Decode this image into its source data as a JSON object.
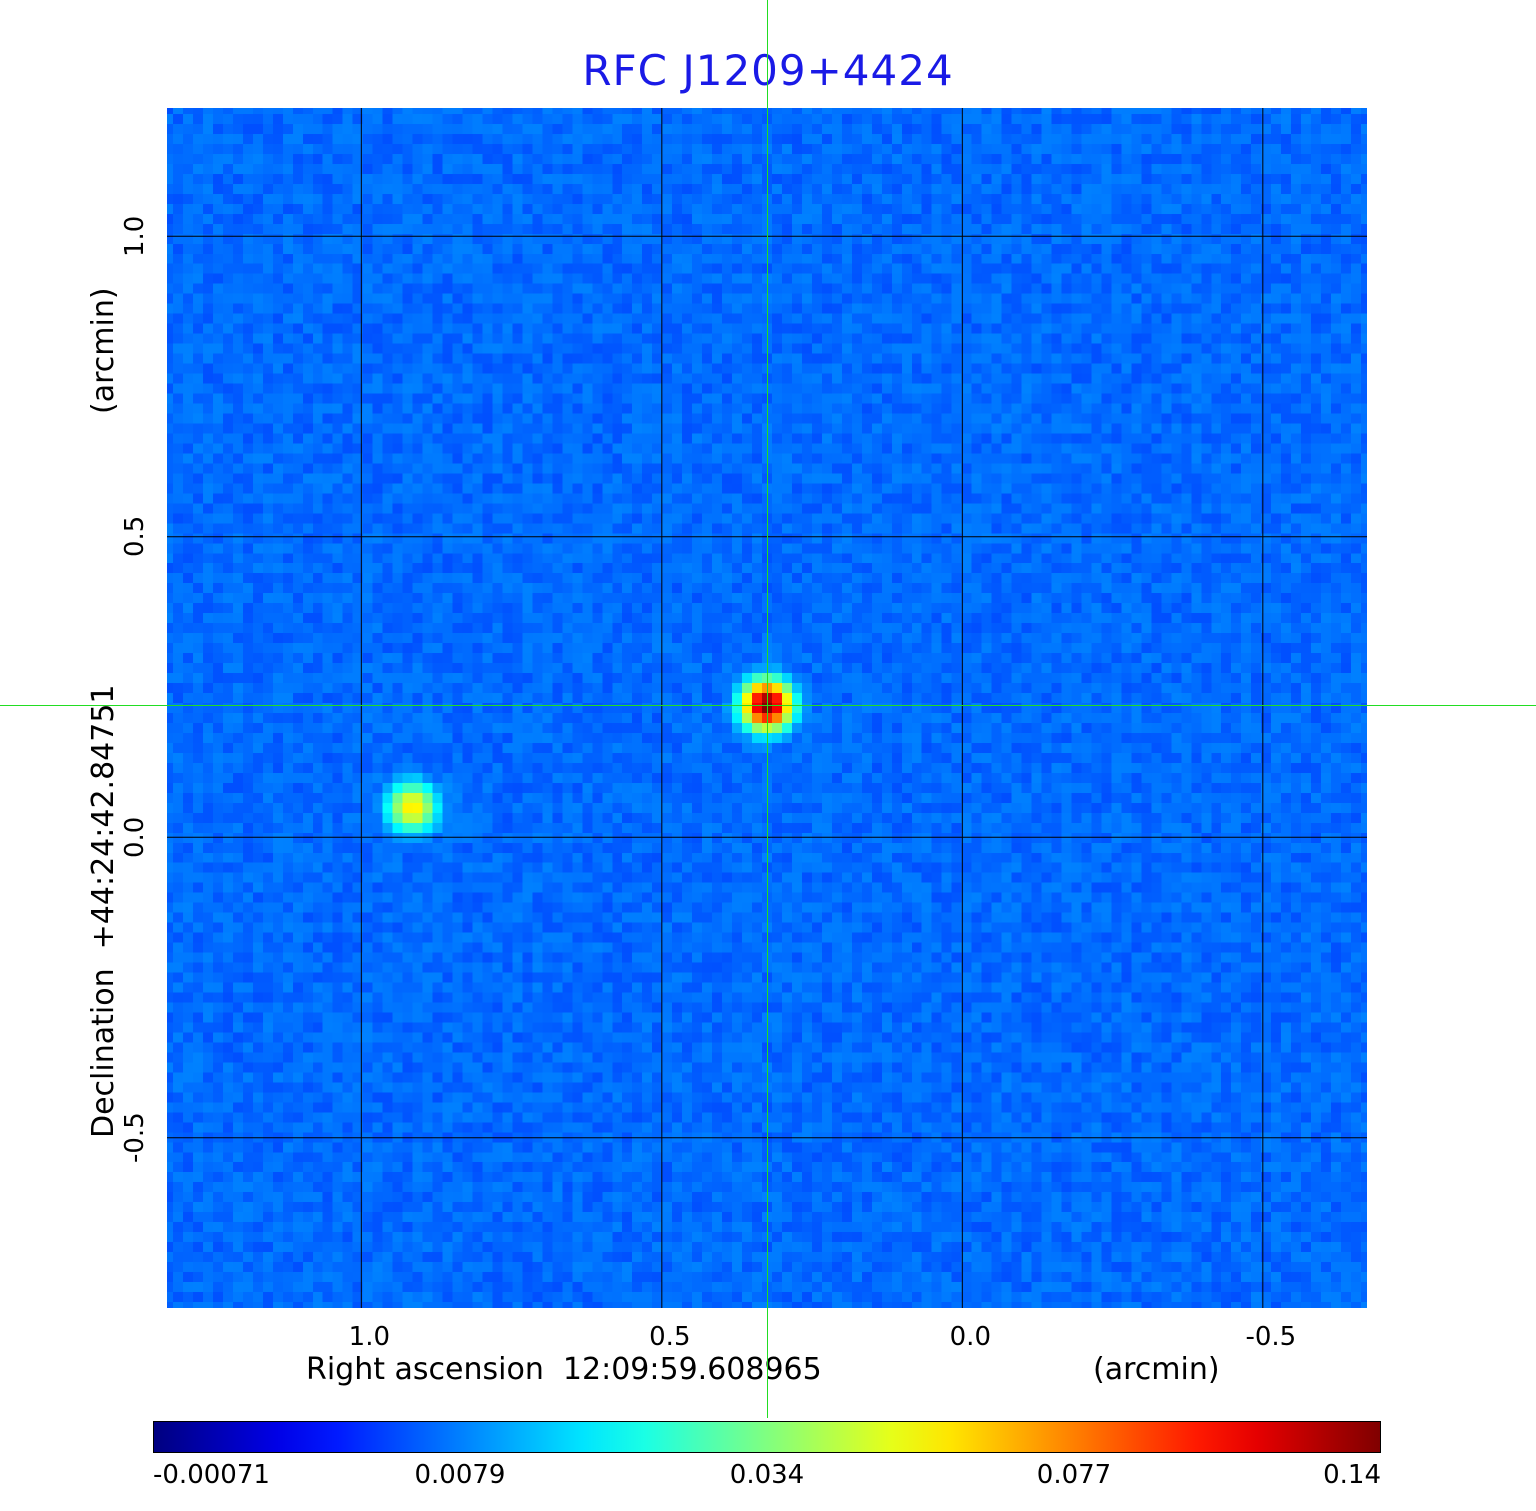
{
  "chart_data": {
    "type": "heatmap",
    "title": "RFC J1209+4424",
    "xlabel": "Right ascension  12:09:59.608965",
    "xunit": "(arcmin)",
    "ylabel": "Declination  +44:24:42.84751",
    "yunit": "(arcmin)",
    "x_ticks": [
      "1.0",
      "0.5",
      "0.0",
      "-0.5"
    ],
    "x_tick_values": [
      1.0,
      0.5,
      0.0,
      -0.5
    ],
    "y_ticks": [
      "1.0",
      "0.5",
      "0.0",
      "-0.5"
    ],
    "y_tick_values": [
      1.0,
      0.5,
      0.0,
      -0.5
    ],
    "xlim": [
      1.33,
      -0.68
    ],
    "ylim": [
      -0.79,
      1.22
    ],
    "grid": true,
    "colormap": "jet",
    "colorbar_ticks": [
      "-0.00071",
      "0.0079",
      "0.034",
      "0.077",
      "0.14"
    ],
    "color_range": [
      -0.00071,
      0.14
    ],
    "sources": [
      {
        "x": 0.325,
        "y": 0.22,
        "peak": 0.14
      },
      {
        "x": 0.915,
        "y": 0.05,
        "peak": 0.045
      }
    ],
    "crosshair": {
      "x": 0.325,
      "y": 0.22
    },
    "colors": {
      "title": "#1a1ae6",
      "crosshair": "#22dd22",
      "grid": "#000000",
      "frame": "#ffffff"
    }
  }
}
